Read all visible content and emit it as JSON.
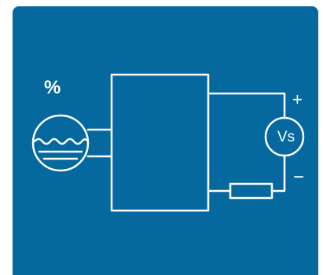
{
  "colors": {
    "background": "#05689f",
    "line": "#ffffff"
  },
  "labels": {
    "percent": "%",
    "plus": "+",
    "minus": "−",
    "voltmeter": "Vs"
  },
  "icons": [
    "liquid-tank-icon",
    "voltmeter-icon",
    "resistor-icon"
  ]
}
